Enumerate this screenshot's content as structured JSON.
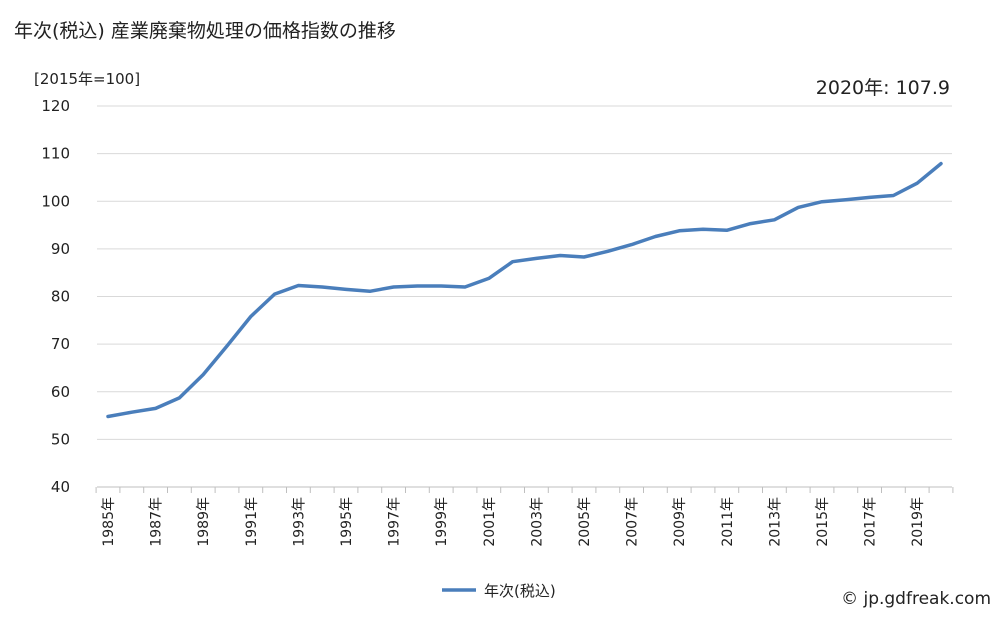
{
  "title": "年次(税込) 産業廃棄物処理の価格指数の推移",
  "unit_label": "[2015年=100]",
  "latest_label": "2020年: 107.9",
  "credit": "© jp.gdfreak.com",
  "colors": {
    "series": "#4a7ebb",
    "grid": "#d9d9d9",
    "axis": "#bfbfbf"
  },
  "chart_data": {
    "type": "line",
    "title": "年次(税込) 産業廃棄物処理の価格指数の推移",
    "ylabel": "[2015年=100]",
    "xlabel": "",
    "ylim": [
      40,
      120
    ],
    "yticks": [
      40,
      50,
      60,
      70,
      80,
      90,
      100,
      110,
      120
    ],
    "grid": true,
    "legend": "bottom",
    "x": [
      1985,
      1986,
      1987,
      1988,
      1989,
      1990,
      1991,
      1992,
      1993,
      1994,
      1995,
      1996,
      1997,
      1998,
      1999,
      2000,
      2001,
      2002,
      2003,
      2004,
      2005,
      2006,
      2007,
      2008,
      2009,
      2010,
      2011,
      2012,
      2013,
      2014,
      2015,
      2016,
      2017,
      2018,
      2019,
      2020
    ],
    "x_tick_labels": [
      "1985年",
      "1987年",
      "1989年",
      "1991年",
      "1993年",
      "1995年",
      "1997年",
      "1999年",
      "2001年",
      "2003年",
      "2005年",
      "2007年",
      "2009年",
      "2011年",
      "2013年",
      "2015年",
      "2017年",
      "2019年"
    ],
    "series": [
      {
        "name": "年次(税込)",
        "values": [
          54.8,
          55.7,
          56.5,
          58.7,
          63.6,
          69.6,
          75.8,
          80.5,
          82.3,
          82.0,
          81.5,
          81.1,
          82.0,
          82.2,
          82.2,
          82.0,
          83.8,
          87.3,
          88.0,
          88.6,
          88.3,
          89.5,
          90.9,
          92.6,
          93.8,
          94.1,
          93.9,
          95.3,
          96.1,
          98.7,
          99.9,
          100.3,
          100.8,
          101.2,
          103.8,
          107.9
        ]
      }
    ]
  }
}
